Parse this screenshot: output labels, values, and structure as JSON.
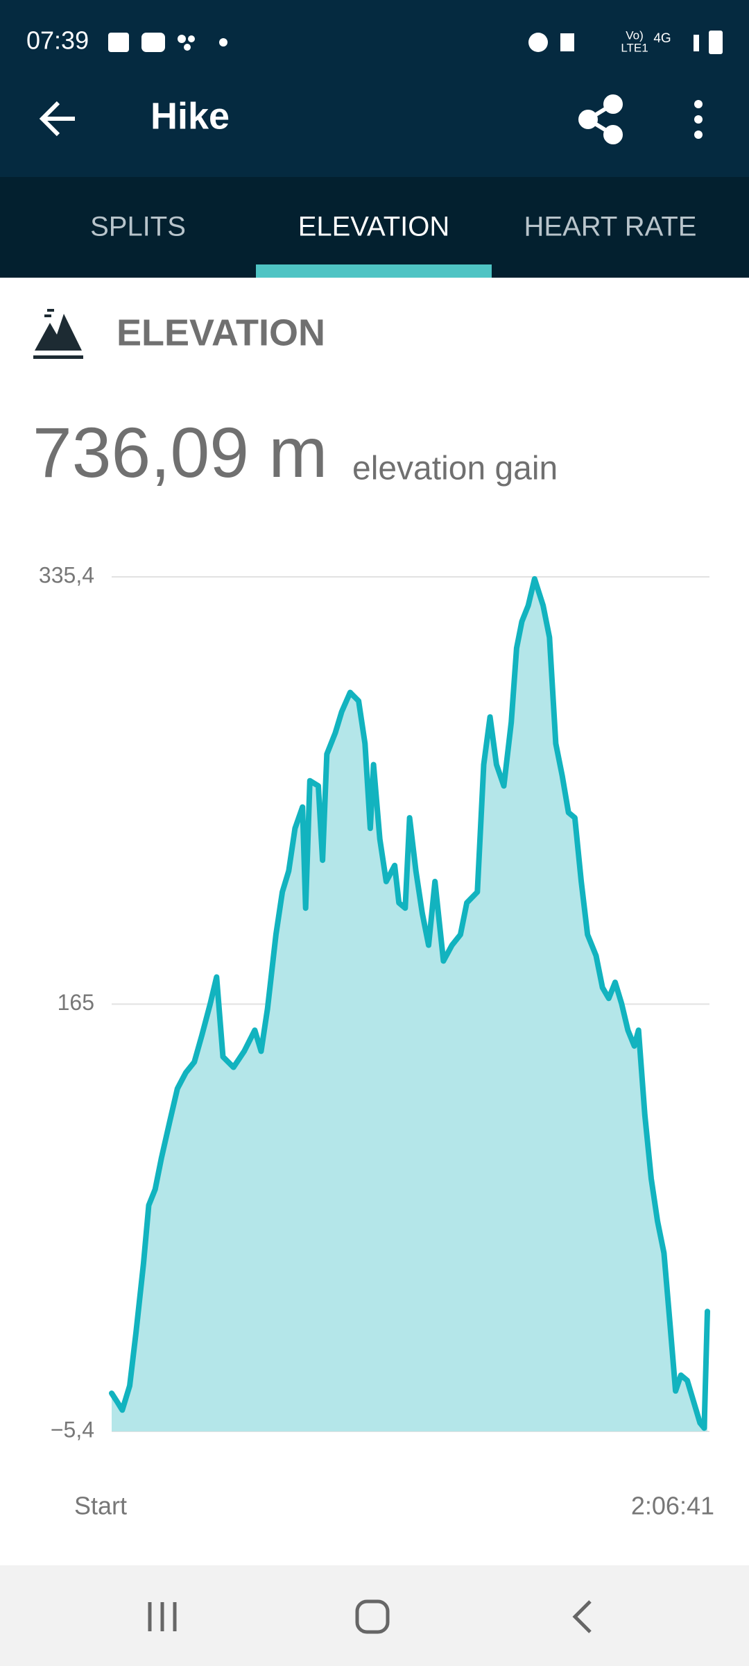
{
  "status_bar": {
    "time": "07:39",
    "network": [
      "Vo)",
      "LTE1",
      "4G"
    ]
  },
  "app_bar": {
    "title": "Hike"
  },
  "tabs": [
    "SPLITS",
    "ELEVATION",
    "HEART RATE"
  ],
  "section": {
    "title": "ELEVATION",
    "total": "736,09 m",
    "total_caption": "elevation gain"
  },
  "chart_data": {
    "type": "area",
    "x": [
      0,
      68,
      135,
      230,
      311,
      406,
      473,
      555,
      636,
      744,
      839,
      947,
      1055,
      1150,
      1258,
      1339,
      1420,
      1555,
      1691,
      1826,
      1907,
      1988,
      2096,
      2178,
      2259,
      2340,
      2435,
      2475,
      2529,
      2637,
      2691,
      2746,
      2854,
      2935,
      3043,
      3151,
      3232,
      3300,
      3341,
      3422,
      3503,
      3611,
      3665,
      3746,
      3801,
      3882,
      3963,
      4044,
      4125,
      4233,
      4342,
      4450,
      4531,
      4666,
      4747,
      4828,
      4910,
      5004,
      5099,
      5167,
      5234,
      5315,
      5396,
      5505,
      5586,
      5667,
      5748,
      5829,
      5910,
      5991,
      6072,
      6181,
      6262,
      6343,
      6424,
      6506,
      6587,
      6668,
      6722,
      6803,
      6884,
      6965,
      7047,
      7128,
      7195,
      7263,
      7344,
      7425,
      7506,
      7560,
      7601
    ],
    "series": [
      {
        "color": "#12b3bf",
        "fill": "#b4e6e9",
        "values": [
          9.8,
          6.5,
          3.1,
          12.8,
          34,
          61.5,
          84.8,
          91.1,
          103.8,
          118.6,
          131.3,
          137.7,
          141.9,
          152.5,
          165.2,
          175.8,
          144,
          139.8,
          146.2,
          154.6,
          146.2,
          163.1,
          192.7,
          209.7,
          218.1,
          235.1,
          243.6,
          203.3,
          254.1,
          252,
          222.4,
          264.7,
          273.2,
          281.6,
          289.3,
          285.9,
          268.9,
          235.1,
          260.5,
          230.8,
          213.9,
          220.3,
          205.4,
          203.3,
          239.3,
          218.1,
          201.2,
          188.5,
          213.9,
          182.2,
          188.5,
          192.7,
          205.4,
          209.7,
          260.5,
          279.5,
          260.5,
          252,
          277.4,
          307,
          317.6,
          324,
          334.6,
          324,
          311.3,
          268.9,
          256.2,
          241.4,
          239.3,
          213.9,
          192.7,
          184.3,
          171.6,
          167.3,
          173.7,
          165.2,
          154.6,
          148.3,
          154.6,
          120.8,
          95.4,
          78.4,
          65.7,
          36.1,
          10.7,
          17,
          14.9,
          6.5,
          -2,
          -4.1,
          42.4
        ]
      }
    ],
    "xlim": [
      0,
      7601
    ],
    "xticks": [
      {
        "value": 0,
        "label": "Start"
      },
      {
        "value": 7601,
        "label": "2:06:41"
      }
    ],
    "ylim": [
      -5.4,
      335.4
    ],
    "yticks": [
      {
        "value": -5.4,
        "label": "−5,4"
      },
      165,
      {
        "value": 335.4,
        "label": "335,4"
      }
    ],
    "grid": true
  }
}
